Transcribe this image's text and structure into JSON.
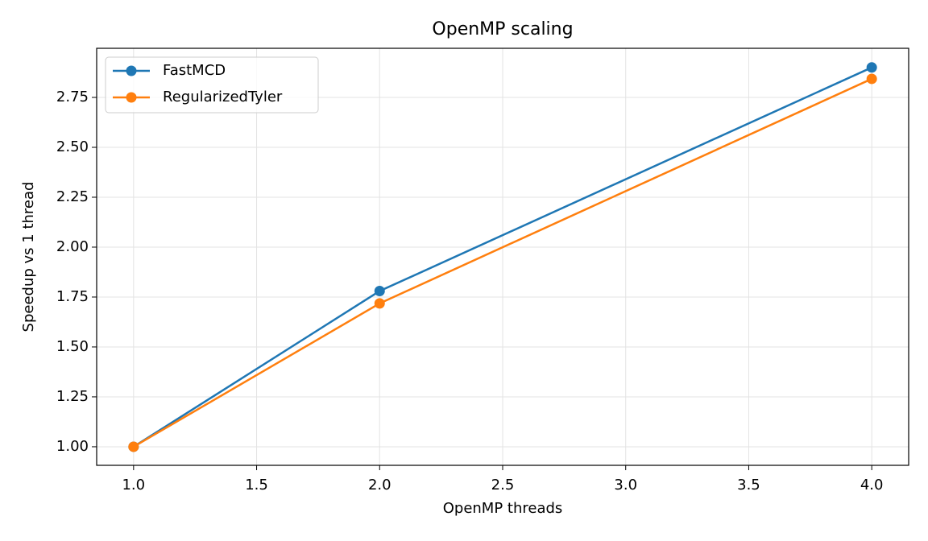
{
  "chart_data": {
    "type": "line",
    "title": "OpenMP scaling",
    "x_label": "OpenMP threads",
    "y_label": "Speedup vs 1 thread",
    "x": [
      1,
      2,
      4
    ],
    "series": [
      {
        "name": "FastMCD",
        "color": "#1f77b4",
        "values": [
          1.0,
          1.78,
          2.9
        ]
      },
      {
        "name": "RegularizedTyler",
        "color": "#ff7f0e",
        "values": [
          1.0,
          1.718,
          2.843
        ]
      }
    ],
    "xlim": [
      0.85,
      4.15
    ],
    "xticks": [
      {
        "value": 1,
        "label": "1.0"
      },
      {
        "value": 1.5,
        "label": "1.5"
      },
      {
        "value": 2,
        "label": "2.0"
      },
      {
        "value": 2.5,
        "label": "2.5"
      },
      {
        "value": 3,
        "label": "3.0"
      },
      {
        "value": 3.5,
        "label": "3.5"
      },
      {
        "value": 4,
        "label": "4.0"
      }
    ],
    "ylim": [
      0.907,
      2.996
    ],
    "yticks": [
      {
        "value": 1,
        "label": "1.00"
      },
      {
        "value": 1.25,
        "label": "1.25"
      },
      {
        "value": 1.5,
        "label": "1.50"
      },
      {
        "value": 1.75,
        "label": "1.75"
      },
      {
        "value": 2,
        "label": "2.00"
      },
      {
        "value": 2.25,
        "label": "2.25"
      },
      {
        "value": 2.5,
        "label": "2.50"
      },
      {
        "value": 2.75,
        "label": "2.75"
      }
    ],
    "grid": true,
    "legend": "upper left"
  }
}
